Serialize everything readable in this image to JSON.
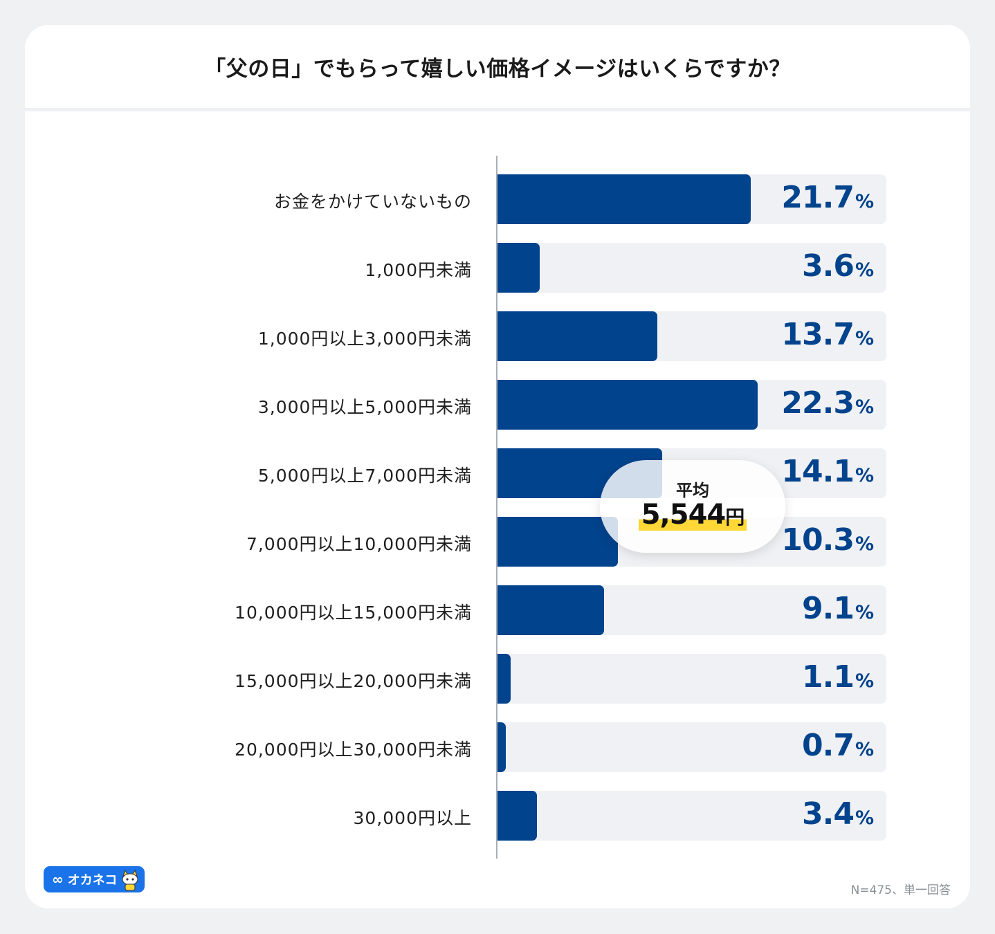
{
  "title": "「父の日」でもらって嬉しい価格イメージはいくらですか？",
  "footnote": "N=475、単一回答",
  "logo": {
    "text": "オカネコ",
    "icon": "infinity-icon",
    "mascot": "cat-mascot-icon"
  },
  "average": {
    "label": "平均",
    "value": "5,544",
    "unit": "円"
  },
  "colors": {
    "bar": "#02438d",
    "track": "#f0f1f4",
    "highlight": "#ffd736"
  },
  "chart_data": {
    "type": "bar",
    "orientation": "horizontal",
    "categories": [
      "お金をかけていないもの",
      "1,000円未満",
      "1,000円以上3,000円未満",
      "3,000円以上5,000円未満",
      "5,000円以上7,000円未満",
      "7,000円以上10,000円未満",
      "10,000円以上15,000円未満",
      "15,000円以上20,000円未満",
      "20,000円以上30,000円未満",
      "30,000円以上"
    ],
    "values": [
      21.7,
      3.6,
      13.7,
      22.3,
      14.1,
      10.3,
      9.1,
      1.1,
      0.7,
      3.4
    ],
    "value_labels": [
      "21.7",
      "3.6",
      "13.7",
      "22.3",
      "14.1",
      "10.3",
      "9.1",
      "1.1",
      "0.7",
      "3.4"
    ],
    "unit": "%",
    "xlim": [
      0,
      33.3
    ]
  }
}
